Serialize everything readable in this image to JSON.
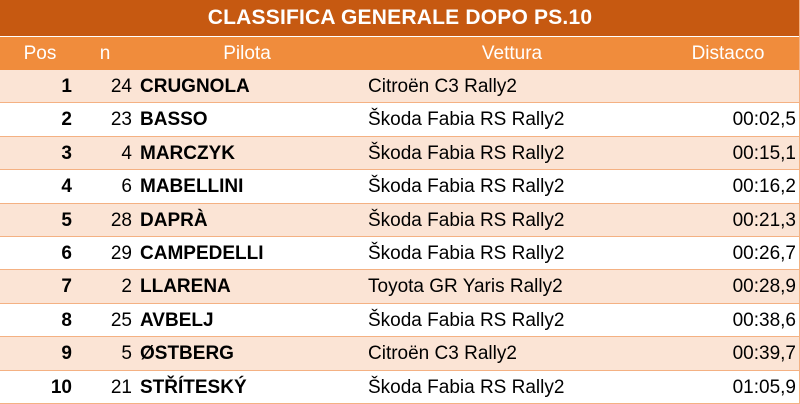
{
  "title": "CLASSIFICA GENERALE DOPO PS.10",
  "columns": {
    "pos": "Pos",
    "n": "n",
    "pilota": "Pilota",
    "vettura": "Vettura",
    "distacco": "Distacco"
  },
  "rows": [
    {
      "pos": "1",
      "n": "24",
      "pilota": "CRUGNOLA",
      "vettura": "Citroën C3 Rally2",
      "distacco": ""
    },
    {
      "pos": "2",
      "n": "23",
      "pilota": "BASSO",
      "vettura": "Škoda Fabia RS Rally2",
      "distacco": "00:02,5"
    },
    {
      "pos": "3",
      "n": "4",
      "pilota": "MARCZYK",
      "vettura": "Škoda Fabia RS Rally2",
      "distacco": "00:15,1"
    },
    {
      "pos": "4",
      "n": "6",
      "pilota": "MABELLINI",
      "vettura": "Škoda Fabia RS Rally2",
      "distacco": "00:16,2"
    },
    {
      "pos": "5",
      "n": "28",
      "pilota": "DAPRÀ",
      "vettura": "Škoda Fabia RS Rally2",
      "distacco": "00:21,3"
    },
    {
      "pos": "6",
      "n": "29",
      "pilota": "CAMPEDELLI",
      "vettura": "Škoda Fabia RS Rally2",
      "distacco": "00:26,7"
    },
    {
      "pos": "7",
      "n": "2",
      "pilota": "LLARENA",
      "vettura": "Toyota GR Yaris Rally2",
      "distacco": "00:28,9"
    },
    {
      "pos": "8",
      "n": "25",
      "pilota": "AVBELJ",
      "vettura": "Škoda Fabia RS Rally2",
      "distacco": "00:38,6"
    },
    {
      "pos": "9",
      "n": "5",
      "pilota": "ØSTBERG",
      "vettura": "Citroën C3 Rally2",
      "distacco": "00:39,7"
    },
    {
      "pos": "10",
      "n": "21",
      "pilota": "STŘÍTESKÝ",
      "vettura": "Škoda Fabia RS Rally2",
      "distacco": "01:05,9"
    }
  ],
  "colors": {
    "title_bg": "#c65911",
    "header_bg": "#f08c3c",
    "row_alt_bg": "#fbe4d5",
    "row_bg": "#ffffff"
  }
}
